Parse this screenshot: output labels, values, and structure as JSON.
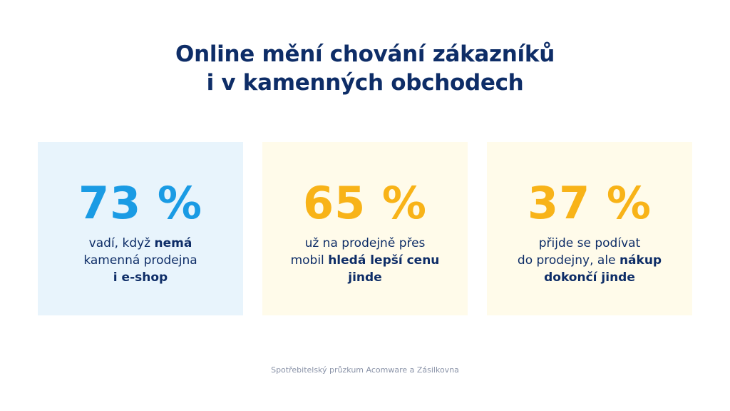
{
  "title": {
    "line1": "Online mění chování zákazníků",
    "line2": "i v kamenných obchodech"
  },
  "colors": {
    "title": "#0e2d67",
    "blue_stat": "#1a9be4",
    "yellow_stat": "#f8b318",
    "blue_card_bg": "#e8f4fc",
    "yellow_card_bg": "#fffbea",
    "source_text": "#8a93a8"
  },
  "cards": [
    {
      "stat": "73 %",
      "lines": [
        {
          "pre": "vadí, když ",
          "bold": "nemá",
          "post": ""
        },
        {
          "pre": "kamenná prodejna",
          "bold": "",
          "post": ""
        },
        {
          "pre": "",
          "bold": "i e-shop",
          "post": ""
        }
      ]
    },
    {
      "stat": "65 %",
      "lines": [
        {
          "pre": "už na prodejně přes",
          "bold": "",
          "post": ""
        },
        {
          "pre": "mobil ",
          "bold": "hledá lepší cenu",
          "post": ""
        },
        {
          "pre": "",
          "bold": "jinde",
          "post": ""
        }
      ]
    },
    {
      "stat": "37 %",
      "lines": [
        {
          "pre": "přijde se podívat",
          "bold": "",
          "post": ""
        },
        {
          "pre": "do prodejny, ale ",
          "bold": "nákup",
          "post": ""
        },
        {
          "pre": "",
          "bold": "dokončí jinde",
          "post": ""
        }
      ]
    }
  ],
  "source": "Spotřebitelský průzkum Acomware a Zásilkovna"
}
